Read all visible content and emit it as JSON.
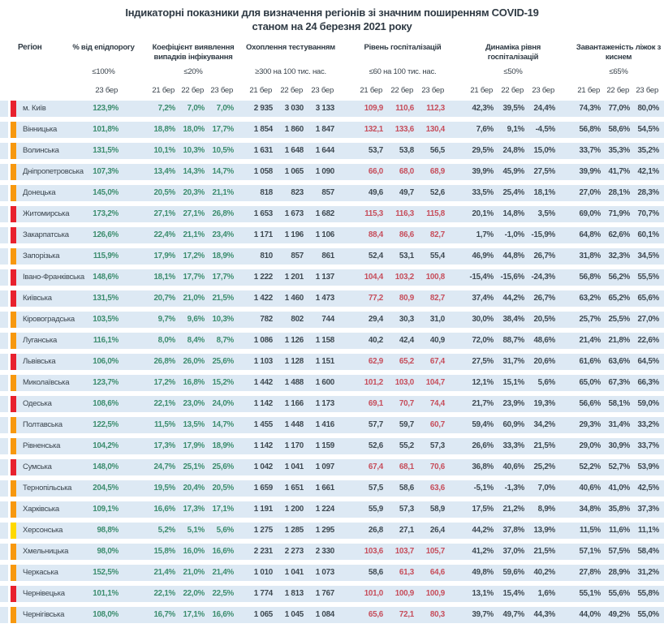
{
  "title": {
    "line1": "Індикаторні показники для визначення регіонів зі значним поширенням COVID-19",
    "line2": "станом на 24 березня 2021 року"
  },
  "columns": {
    "region_label": "Регіон",
    "groups": [
      {
        "title": "% від епідпорогу",
        "threshold": "≤100%",
        "dates": [
          "23 бер"
        ]
      },
      {
        "title": "Коефіцієнт виявлення випадків інфікування",
        "threshold": "≤20%",
        "dates": [
          "21 бер",
          "22 бер",
          "23 бер"
        ]
      },
      {
        "title": "Охоплення тестуванням",
        "threshold": "≥300 на 100 тис. нас.",
        "dates": [
          "21 бер",
          "22 бер",
          "23 бер"
        ]
      },
      {
        "title": "Рівень госпіталізацій",
        "threshold": "≤60 на 100 тис. нас.",
        "dates": [
          "21 бер",
          "22 бер",
          "23 бер"
        ]
      },
      {
        "title": "Динаміка рівня госпіталізацій",
        "threshold": "≤50%",
        "dates": [
          "21 бер",
          "22 бер",
          "23 бер"
        ]
      },
      {
        "title": "Завантаженість ліжок з киснем",
        "threshold": "≤65%",
        "dates": [
          "21 бер",
          "22 бер",
          "23 бер"
        ]
      }
    ]
  },
  "colors": {
    "red": "#e8212e",
    "orange": "#f7980f",
    "yellow": "#ffd900",
    "band": "#dde9f4",
    "green_value": "#3c8d6e",
    "dark_value": "#3e4951",
    "alert_value": "#c64d5b"
  },
  "rows": [
    {
      "region": "м. Київ",
      "level": "red",
      "pct": "123,9%",
      "coef": [
        "7,2%",
        "7,0%",
        "7,0%"
      ],
      "test": [
        "2 935",
        "3 030",
        "3 133"
      ],
      "hosp": [
        "109,9",
        "110,6",
        "112,3"
      ],
      "hosp_alert": [
        true,
        true,
        true
      ],
      "dyn": [
        "42,3%",
        "39,5%",
        "24,4%"
      ],
      "bed": [
        "74,3%",
        "77,0%",
        "80,0%"
      ]
    },
    {
      "region": "Вінницька",
      "level": "orange",
      "pct": "101,8%",
      "coef": [
        "18,8%",
        "18,0%",
        "17,7%"
      ],
      "test": [
        "1 854",
        "1 860",
        "1 847"
      ],
      "hosp": [
        "132,1",
        "133,6",
        "130,4"
      ],
      "hosp_alert": [
        true,
        true,
        true
      ],
      "dyn": [
        "7,6%",
        "9,1%",
        "-4,5%"
      ],
      "bed": [
        "56,8%",
        "58,6%",
        "54,5%"
      ]
    },
    {
      "region": "Волинська",
      "level": "orange",
      "pct": "131,5%",
      "coef": [
        "10,1%",
        "10,3%",
        "10,5%"
      ],
      "test": [
        "1 631",
        "1 648",
        "1 644"
      ],
      "hosp": [
        "53,7",
        "53,8",
        "56,5"
      ],
      "hosp_alert": [
        false,
        false,
        false
      ],
      "dyn": [
        "29,5%",
        "24,8%",
        "15,0%"
      ],
      "bed": [
        "33,7%",
        "35,3%",
        "35,2%"
      ]
    },
    {
      "region": "Дніпропетровська",
      "level": "orange",
      "pct": "107,3%",
      "coef": [
        "13,4%",
        "14,3%",
        "14,7%"
      ],
      "test": [
        "1 058",
        "1 065",
        "1 090"
      ],
      "hosp": [
        "66,0",
        "68,0",
        "68,9"
      ],
      "hosp_alert": [
        true,
        true,
        true
      ],
      "dyn": [
        "39,9%",
        "45,9%",
        "27,5%"
      ],
      "bed": [
        "39,9%",
        "41,7%",
        "42,1%"
      ]
    },
    {
      "region": "Донецька",
      "level": "orange",
      "pct": "145,0%",
      "coef": [
        "20,5%",
        "20,3%",
        "21,1%"
      ],
      "test": [
        "818",
        "823",
        "857"
      ],
      "hosp": [
        "49,6",
        "49,7",
        "52,6"
      ],
      "hosp_alert": [
        false,
        false,
        false
      ],
      "dyn": [
        "33,5%",
        "25,4%",
        "18,1%"
      ],
      "bed": [
        "27,0%",
        "28,1%",
        "28,3%"
      ]
    },
    {
      "region": "Житомирська",
      "level": "red",
      "pct": "173,2%",
      "coef": [
        "27,1%",
        "27,1%",
        "26,8%"
      ],
      "test": [
        "1 653",
        "1 673",
        "1 682"
      ],
      "hosp": [
        "115,3",
        "116,3",
        "115,8"
      ],
      "hosp_alert": [
        true,
        true,
        true
      ],
      "dyn": [
        "20,1%",
        "14,8%",
        "3,5%"
      ],
      "bed": [
        "69,0%",
        "71,9%",
        "70,7%"
      ]
    },
    {
      "region": "Закарпатська",
      "level": "red",
      "pct": "126,6%",
      "coef": [
        "22,4%",
        "21,1%",
        "23,4%"
      ],
      "test": [
        "1 171",
        "1 196",
        "1 106"
      ],
      "hosp": [
        "88,4",
        "86,6",
        "82,7"
      ],
      "hosp_alert": [
        true,
        true,
        true
      ],
      "dyn": [
        "1,7%",
        "-1,0%",
        "-15,9%"
      ],
      "bed": [
        "64,8%",
        "62,6%",
        "60,1%"
      ]
    },
    {
      "region": "Запорізька",
      "level": "orange",
      "pct": "115,9%",
      "coef": [
        "17,9%",
        "17,2%",
        "18,9%"
      ],
      "test": [
        "810",
        "857",
        "861"
      ],
      "hosp": [
        "52,4",
        "53,1",
        "55,4"
      ],
      "hosp_alert": [
        false,
        false,
        false
      ],
      "dyn": [
        "46,9%",
        "44,8%",
        "26,7%"
      ],
      "bed": [
        "31,8%",
        "32,3%",
        "34,5%"
      ]
    },
    {
      "region": "Івано-Франківська",
      "level": "red",
      "pct": "148,6%",
      "coef": [
        "18,1%",
        "17,7%",
        "17,7%"
      ],
      "test": [
        "1 222",
        "1 201",
        "1 137"
      ],
      "hosp": [
        "104,4",
        "103,2",
        "100,8"
      ],
      "hosp_alert": [
        true,
        true,
        true
      ],
      "dyn": [
        "-15,4%",
        "-15,6%",
        "-24,3%"
      ],
      "bed": [
        "56,8%",
        "56,2%",
        "55,5%"
      ]
    },
    {
      "region": "Київська",
      "level": "red",
      "pct": "131,5%",
      "coef": [
        "20,7%",
        "21,0%",
        "21,5%"
      ],
      "test": [
        "1 422",
        "1 460",
        "1 473"
      ],
      "hosp": [
        "77,2",
        "80,9",
        "82,7"
      ],
      "hosp_alert": [
        true,
        true,
        true
      ],
      "dyn": [
        "37,4%",
        "44,2%",
        "26,7%"
      ],
      "bed": [
        "63,2%",
        "65,2%",
        "65,6%"
      ]
    },
    {
      "region": "Кіровоградська",
      "level": "orange",
      "pct": "103,5%",
      "coef": [
        "9,7%",
        "9,6%",
        "10,3%"
      ],
      "test": [
        "782",
        "802",
        "744"
      ],
      "hosp": [
        "29,4",
        "30,3",
        "31,0"
      ],
      "hosp_alert": [
        false,
        false,
        false
      ],
      "dyn": [
        "30,0%",
        "38,4%",
        "20,5%"
      ],
      "bed": [
        "25,7%",
        "25,5%",
        "27,0%"
      ]
    },
    {
      "region": "Луганська",
      "level": "orange",
      "pct": "116,1%",
      "coef": [
        "8,0%",
        "8,4%",
        "8,7%"
      ],
      "test": [
        "1 086",
        "1 126",
        "1 158"
      ],
      "hosp": [
        "40,2",
        "42,4",
        "40,9"
      ],
      "hosp_alert": [
        false,
        false,
        false
      ],
      "dyn": [
        "72,0%",
        "88,7%",
        "48,6%"
      ],
      "bed": [
        "21,4%",
        "21,8%",
        "22,6%"
      ]
    },
    {
      "region": "Львівська",
      "level": "red",
      "pct": "106,0%",
      "coef": [
        "26,8%",
        "26,0%",
        "25,6%"
      ],
      "test": [
        "1 103",
        "1 128",
        "1 151"
      ],
      "hosp": [
        "62,9",
        "65,2",
        "67,4"
      ],
      "hosp_alert": [
        true,
        true,
        true
      ],
      "dyn": [
        "27,5%",
        "31,7%",
        "20,6%"
      ],
      "bed": [
        "61,6%",
        "63,6%",
        "64,5%"
      ]
    },
    {
      "region": "Миколаївська",
      "level": "orange",
      "pct": "123,7%",
      "coef": [
        "17,2%",
        "16,8%",
        "15,2%"
      ],
      "test": [
        "1 442",
        "1 488",
        "1 600"
      ],
      "hosp": [
        "101,2",
        "103,0",
        "104,7"
      ],
      "hosp_alert": [
        true,
        true,
        true
      ],
      "dyn": [
        "12,1%",
        "15,1%",
        "5,6%"
      ],
      "bed": [
        "65,0%",
        "67,3%",
        "66,3%"
      ]
    },
    {
      "region": "Одеська",
      "level": "red",
      "pct": "108,6%",
      "coef": [
        "22,1%",
        "23,0%",
        "24,0%"
      ],
      "test": [
        "1 142",
        "1 166",
        "1 173"
      ],
      "hosp": [
        "69,1",
        "70,7",
        "74,4"
      ],
      "hosp_alert": [
        true,
        true,
        true
      ],
      "dyn": [
        "21,7%",
        "23,9%",
        "19,3%"
      ],
      "bed": [
        "56,6%",
        "58,1%",
        "59,0%"
      ]
    },
    {
      "region": "Полтавська",
      "level": "orange",
      "pct": "122,5%",
      "coef": [
        "11,5%",
        "13,5%",
        "14,7%"
      ],
      "test": [
        "1 455",
        "1 448",
        "1 416"
      ],
      "hosp": [
        "57,7",
        "59,7",
        "60,7"
      ],
      "hosp_alert": [
        false,
        false,
        true
      ],
      "dyn": [
        "59,4%",
        "60,9%",
        "34,2%"
      ],
      "bed": [
        "29,3%",
        "31,4%",
        "33,2%"
      ]
    },
    {
      "region": "Рівненська",
      "level": "orange",
      "pct": "104,2%",
      "coef": [
        "17,3%",
        "17,9%",
        "18,9%"
      ],
      "test": [
        "1 142",
        "1 170",
        "1 159"
      ],
      "hosp": [
        "52,6",
        "55,2",
        "57,3"
      ],
      "hosp_alert": [
        false,
        false,
        false
      ],
      "dyn": [
        "26,6%",
        "33,3%",
        "21,5%"
      ],
      "bed": [
        "29,0%",
        "30,9%",
        "33,7%"
      ]
    },
    {
      "region": "Сумська",
      "level": "red",
      "pct": "148,0%",
      "coef": [
        "24,7%",
        "25,1%",
        "25,6%"
      ],
      "test": [
        "1 042",
        "1 041",
        "1 097"
      ],
      "hosp": [
        "67,4",
        "68,1",
        "70,6"
      ],
      "hosp_alert": [
        true,
        true,
        true
      ],
      "dyn": [
        "36,8%",
        "40,6%",
        "25,2%"
      ],
      "bed": [
        "52,2%",
        "52,7%",
        "53,9%"
      ]
    },
    {
      "region": "Тернопільська",
      "level": "orange",
      "pct": "204,5%",
      "coef": [
        "19,5%",
        "20,4%",
        "20,5%"
      ],
      "test": [
        "1 659",
        "1 651",
        "1 661"
      ],
      "hosp": [
        "57,5",
        "58,6",
        "63,6"
      ],
      "hosp_alert": [
        false,
        false,
        true
      ],
      "dyn": [
        "-5,1%",
        "-1,3%",
        "7,0%"
      ],
      "bed": [
        "40,6%",
        "41,0%",
        "42,5%"
      ]
    },
    {
      "region": "Харківська",
      "level": "orange",
      "pct": "109,1%",
      "coef": [
        "16,6%",
        "17,3%",
        "17,1%"
      ],
      "test": [
        "1 191",
        "1 200",
        "1 224"
      ],
      "hosp": [
        "55,9",
        "57,3",
        "58,9"
      ],
      "hosp_alert": [
        false,
        false,
        false
      ],
      "dyn": [
        "17,5%",
        "21,2%",
        "8,9%"
      ],
      "bed": [
        "34,8%",
        "35,8%",
        "37,3%"
      ]
    },
    {
      "region": "Херсонська",
      "level": "yellow",
      "pct": "98,8%",
      "coef": [
        "5,2%",
        "5,1%",
        "5,6%"
      ],
      "test": [
        "1 275",
        "1 285",
        "1 295"
      ],
      "hosp": [
        "26,8",
        "27,1",
        "26,4"
      ],
      "hosp_alert": [
        false,
        false,
        false
      ],
      "dyn": [
        "44,2%",
        "37,8%",
        "13,9%"
      ],
      "bed": [
        "11,5%",
        "11,6%",
        "11,1%"
      ]
    },
    {
      "region": "Хмельницька",
      "level": "orange",
      "pct": "98,0%",
      "coef": [
        "15,8%",
        "16,0%",
        "16,6%"
      ],
      "test": [
        "2 231",
        "2 273",
        "2 330"
      ],
      "hosp": [
        "103,6",
        "103,7",
        "105,7"
      ],
      "hosp_alert": [
        true,
        true,
        true
      ],
      "dyn": [
        "41,2%",
        "37,0%",
        "21,5%"
      ],
      "bed": [
        "57,1%",
        "57,5%",
        "58,4%"
      ]
    },
    {
      "region": "Черкаська",
      "level": "orange",
      "pct": "152,5%",
      "coef": [
        "21,4%",
        "21,0%",
        "21,4%"
      ],
      "test": [
        "1 010",
        "1 041",
        "1 073"
      ],
      "hosp": [
        "58,6",
        "61,3",
        "64,6"
      ],
      "hosp_alert": [
        false,
        true,
        true
      ],
      "dyn": [
        "49,8%",
        "59,6%",
        "40,2%"
      ],
      "bed": [
        "27,8%",
        "28,9%",
        "31,2%"
      ]
    },
    {
      "region": "Чернівецька",
      "level": "red",
      "pct": "101,1%",
      "coef": [
        "22,1%",
        "22,0%",
        "22,5%"
      ],
      "test": [
        "1 774",
        "1 813",
        "1 767"
      ],
      "hosp": [
        "101,0",
        "100,9",
        "100,9"
      ],
      "hosp_alert": [
        true,
        true,
        true
      ],
      "dyn": [
        "13,1%",
        "15,4%",
        "1,6%"
      ],
      "bed": [
        "55,1%",
        "55,6%",
        "55,8%"
      ]
    },
    {
      "region": "Чернігівська",
      "level": "orange",
      "pct": "108,0%",
      "coef": [
        "16,7%",
        "17,1%",
        "16,6%"
      ],
      "test": [
        "1 065",
        "1 045",
        "1 084"
      ],
      "hosp": [
        "65,6",
        "72,1",
        "80,3"
      ],
      "hosp_alert": [
        true,
        true,
        true
      ],
      "dyn": [
        "39,7%",
        "49,7%",
        "44,3%"
      ],
      "bed": [
        "44,0%",
        "49,2%",
        "55,0%"
      ]
    }
  ]
}
